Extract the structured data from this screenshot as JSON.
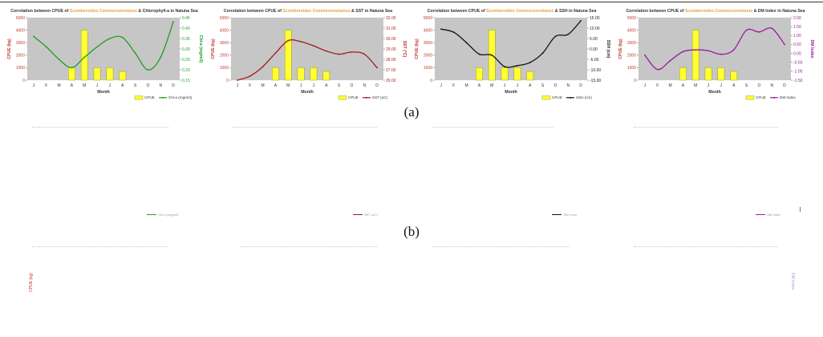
{
  "caption_a": "(a)",
  "caption_b": "(b)",
  "months": [
    "J",
    "F",
    "M",
    "A",
    "M",
    "J",
    "J",
    "A",
    "S",
    "O",
    "N",
    "D"
  ],
  "cpue": [
    null,
    null,
    null,
    1000,
    4000,
    1000,
    1000,
    700,
    null,
    null,
    null,
    null
  ],
  "chart_data": [
    {
      "type": "bar+line",
      "title_pre": "Correlation between CPUE of ",
      "title_species": "Scomberoides Commersonnianus",
      "title_post": " & Chlorophyll-a in Natuna Sea",
      "xlabel": "Month",
      "ylabel_left": "CPUE (kg)",
      "ylabel_right": "Chl-a (mg/m3)",
      "ylim_left": [
        0,
        5000
      ],
      "left_ticks": [
        "0",
        "1000",
        "2000",
        "3000",
        "4000",
        "5000"
      ],
      "ylim_right": [
        0.15,
        0.45
      ],
      "right_ticks": [
        "0.15",
        "0.20",
        "0.25",
        "0.30",
        "0.35",
        "0.40",
        "0.45"
      ],
      "right_color": "#1e9e1e",
      "line_color": "#1e9e1e",
      "legend_bar": "CPUE",
      "legend_line": "Chl-a (mg/m3)",
      "line_values": [
        0.36,
        0.31,
        0.25,
        0.21,
        0.26,
        0.31,
        0.35,
        0.355,
        0.28,
        0.2,
        0.26,
        0.43
      ]
    },
    {
      "type": "bar+line",
      "title_pre": "Correlation between CPUE of ",
      "title_species": "Scomberoides Commersonnianus",
      "title_post": " & SST in Natuna Sea",
      "xlabel": "Month",
      "ylabel_left": "CPUE (kg)",
      "ylabel_right": "SST (°C)",
      "ylim_left": [
        0,
        5000
      ],
      "left_ticks": [
        "0",
        "1000",
        "2000",
        "3000",
        "4000",
        "5000"
      ],
      "ylim_right": [
        26,
        32
      ],
      "right_ticks": [
        "26.00",
        "27.00",
        "28.00",
        "29.00",
        "30.00",
        "31.00",
        "32.00"
      ],
      "right_color": "#b22222",
      "line_color": "#a11c1c",
      "legend_bar": "CPUE",
      "legend_line": "SST (oC)",
      "line_values": [
        26.0,
        26.4,
        27.3,
        28.6,
        29.8,
        29.7,
        29.3,
        28.8,
        28.5,
        28.7,
        28.5,
        27.2
      ]
    },
    {
      "type": "bar+line",
      "title_pre": "Correlation between CPUE of ",
      "title_species": "Scomberoides Commersonnianus",
      "title_post": " & SSH in Natuna Sea",
      "xlabel": "Month",
      "ylabel_left": "CPUE (kg)",
      "ylabel_right": "SSH (cm)",
      "ylim_left": [
        0,
        5000
      ],
      "left_ticks": [
        "0",
        "1000",
        "2000",
        "3000",
        "4000",
        "5000"
      ],
      "ylim_right": [
        -15,
        15
      ],
      "right_ticks": [
        "-15.00",
        "-10.00",
        "-5.00",
        "0.00",
        "5.00",
        "10.00",
        "15.00"
      ],
      "right_color": "#222222",
      "line_color": "#111111",
      "legend_bar": "CPUE",
      "legend_line": "SSH (cm)",
      "line_values": [
        9.5,
        8.0,
        3.0,
        -2.5,
        -3.0,
        -8.5,
        -8.0,
        -6.5,
        -2.0,
        6.0,
        7.0,
        13.5
      ]
    },
    {
      "type": "bar+line",
      "title_pre": "Correlation between CPUE of ",
      "title_species": "Scomberoides Commersonnianus",
      "title_post": " & DM Index in Natuna Sea",
      "xlabel": "Month",
      "ylabel_left": "CPUE (kg)",
      "ylabel_right": "DM Index",
      "ylim_left": [
        0,
        5000
      ],
      "left_ticks": [
        "0",
        "1000",
        "2000",
        "3000",
        "4000",
        "5000"
      ],
      "ylim_right": [
        -1.5,
        2.0
      ],
      "right_ticks": [
        "-1.50",
        "-1.00",
        "-0.50",
        "0.00",
        "0.50",
        "1.00",
        "1.50",
        "2.00"
      ],
      "right_color": "#9b1aa0",
      "line_color": "#9b1aa0",
      "legend_bar": "CPUE",
      "legend_line": "DM Index",
      "line_values": [
        -0.1,
        -0.9,
        -0.4,
        0.1,
        0.2,
        0.15,
        -0.05,
        0.2,
        1.3,
        1.2,
        1.4,
        0.5
      ]
    }
  ],
  "ghost_legends": [
    "Chl-a (mg/m3)",
    "SST (oC)",
    "SSH (cm)",
    "DM Index"
  ],
  "ghost_ylabel_left": "CPUE (kg)",
  "ghost_ylabel_right": "DM Index",
  "colors": {
    "plot_bg": "#c6c6c6",
    "bar_fill": "#ffff33",
    "bar_stroke": "#8a8a00",
    "axis_text": "#c0392b",
    "species_text": "#e8a33c"
  }
}
